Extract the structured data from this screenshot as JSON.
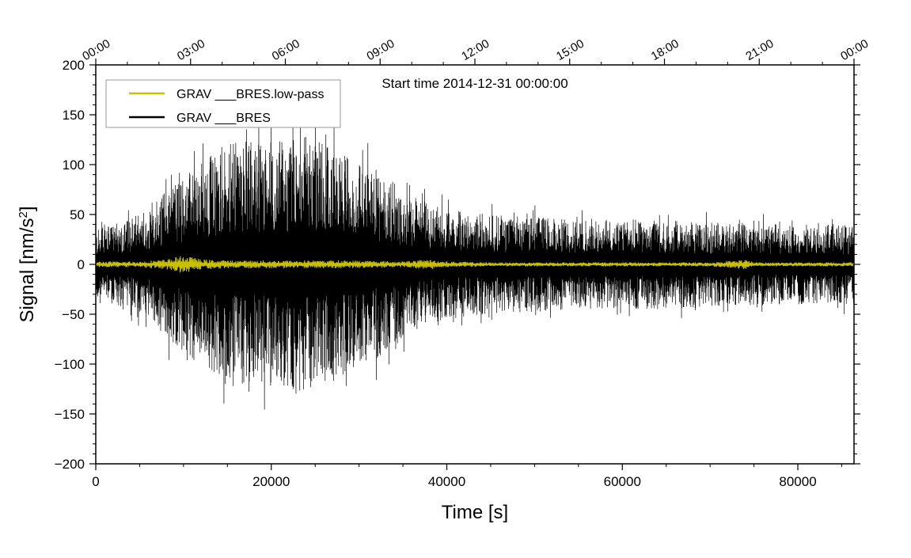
{
  "chart_data": {
    "type": "line",
    "annotation": "Start time 2014-12-31 00:00:00",
    "xlabel": "Time [s]",
    "ylabel_main": "Signal [nm/s",
    "ylabel_sup": "2",
    "ylabel_end": "]",
    "xlim": [
      0,
      86400
    ],
    "ylim": [
      -200,
      200
    ],
    "x_ticks": [
      0,
      20000,
      40000,
      60000,
      80000
    ],
    "x_tick_labels": [
      "0",
      "20000",
      "40000",
      "60000",
      "80000"
    ],
    "y_ticks": [
      -200,
      -150,
      -100,
      -50,
      0,
      50,
      100,
      150,
      200
    ],
    "y_tick_labels": [
      "−200",
      "−150",
      "−100",
      "−50",
      "0",
      "50",
      "100",
      "150",
      "200"
    ],
    "top_ticks": [
      0,
      10800,
      21600,
      32400,
      43200,
      54000,
      64800,
      75600,
      86400
    ],
    "top_tick_labels": [
      "00:00",
      "03:00",
      "06:00",
      "09:00",
      "12:00",
      "15:00",
      "18:00",
      "21:00",
      "00:00"
    ],
    "legend_position": "top-left",
    "series": [
      {
        "name": "GRAV ___BRES.low-pass",
        "color": "#c8c000",
        "style": "line",
        "amplitude_envelope": {
          "x": [
            0,
            5000,
            8000,
            10000,
            12000,
            15000,
            20000,
            25000,
            30000,
            35000,
            38000,
            40000,
            45000,
            50000,
            55000,
            60000,
            65000,
            70000,
            74000,
            75000,
            80000,
            86400
          ],
          "y": [
            3,
            3,
            5,
            9,
            5,
            4,
            4,
            4,
            4,
            3,
            5,
            3,
            2,
            2,
            2,
            2,
            2,
            2,
            5,
            2,
            2,
            2
          ]
        }
      },
      {
        "name": "GRAV ___BRES",
        "color": "#000000",
        "style": "line",
        "amplitude_envelope": {
          "x": [
            0,
            2000,
            5000,
            8000,
            10000,
            12000,
            15000,
            18000,
            20000,
            23000,
            26000,
            29000,
            32000,
            35000,
            38000,
            40000,
            45000,
            50000,
            55000,
            60000,
            65000,
            70000,
            75000,
            80000,
            86400
          ],
          "y": [
            35,
            40,
            50,
            75,
            90,
            100,
            125,
            120,
            125,
            130,
            125,
            105,
            95,
            75,
            60,
            55,
            50,
            48,
            45,
            45,
            45,
            42,
            42,
            40,
            40
          ]
        }
      }
    ]
  }
}
